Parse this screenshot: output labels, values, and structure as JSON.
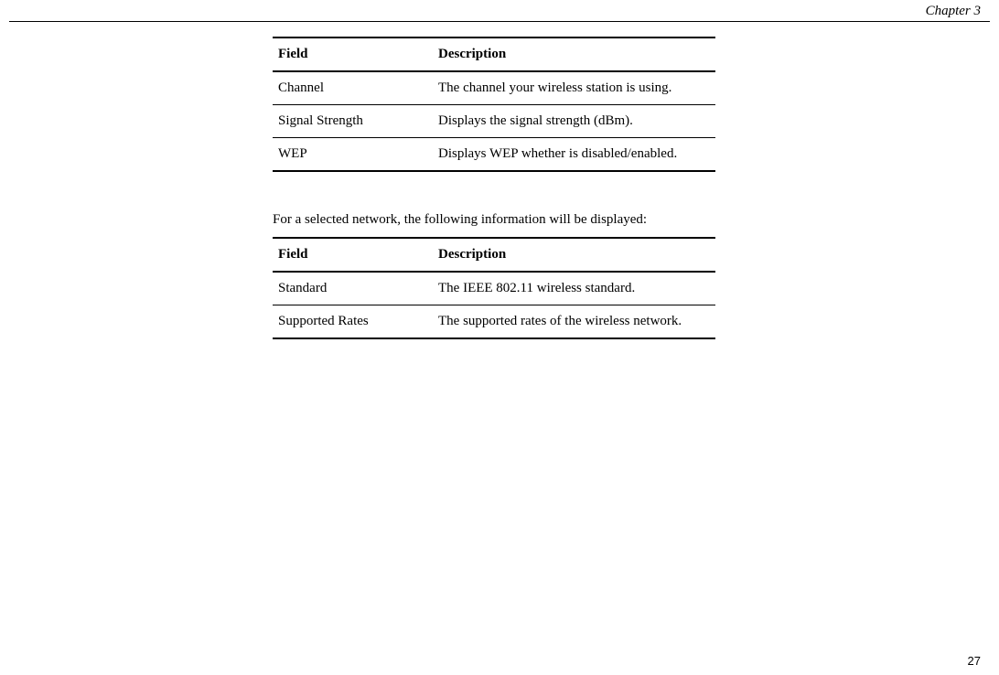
{
  "header": {
    "chapter_label": "Chapter 3"
  },
  "table1": {
    "columns": [
      "Field",
      "Description"
    ],
    "rows": [
      [
        "Channel",
        "The channel your wireless station is using."
      ],
      [
        "Signal Strength",
        "Displays the signal strength (dBm)."
      ],
      [
        "WEP",
        "Displays WEP whether is disabled/enabled."
      ]
    ]
  },
  "paragraph1": "For a selected network, the following information will be displayed:",
  "table2": {
    "columns": [
      "Field",
      "Description"
    ],
    "rows": [
      [
        "Standard",
        "The IEEE 802.11 wireless standard."
      ],
      [
        "Supported Rates",
        "The supported rates of the wireless network."
      ]
    ]
  },
  "footer": {
    "page_number": "27"
  }
}
